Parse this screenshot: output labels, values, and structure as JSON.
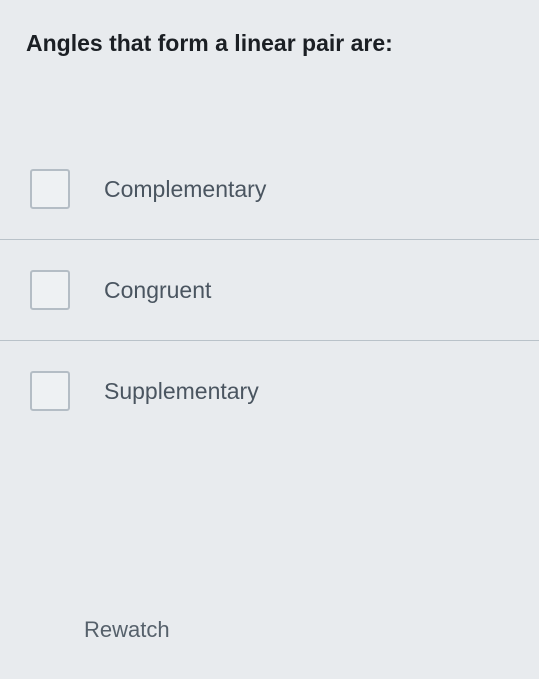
{
  "question": {
    "text": "Angles that form a linear pair are:"
  },
  "options": [
    {
      "label": "Complementary",
      "checked": false
    },
    {
      "label": "Congruent",
      "checked": false
    },
    {
      "label": "Supplementary",
      "checked": false
    }
  ],
  "footer": {
    "rewatch_label": "Rewatch"
  },
  "colors": {
    "background": "#e8ebee",
    "question_text": "#1b1f24",
    "option_text": "#4a5560",
    "divider": "#b9c2c9",
    "checkbox_border": "#b4bdc5",
    "checkbox_bg": "#eef1f3",
    "footer_text": "#56616b"
  },
  "typography": {
    "question_fontsize": 23,
    "question_fontweight": 700,
    "option_fontsize": 23,
    "option_fontweight": 500,
    "footer_fontsize": 22
  }
}
